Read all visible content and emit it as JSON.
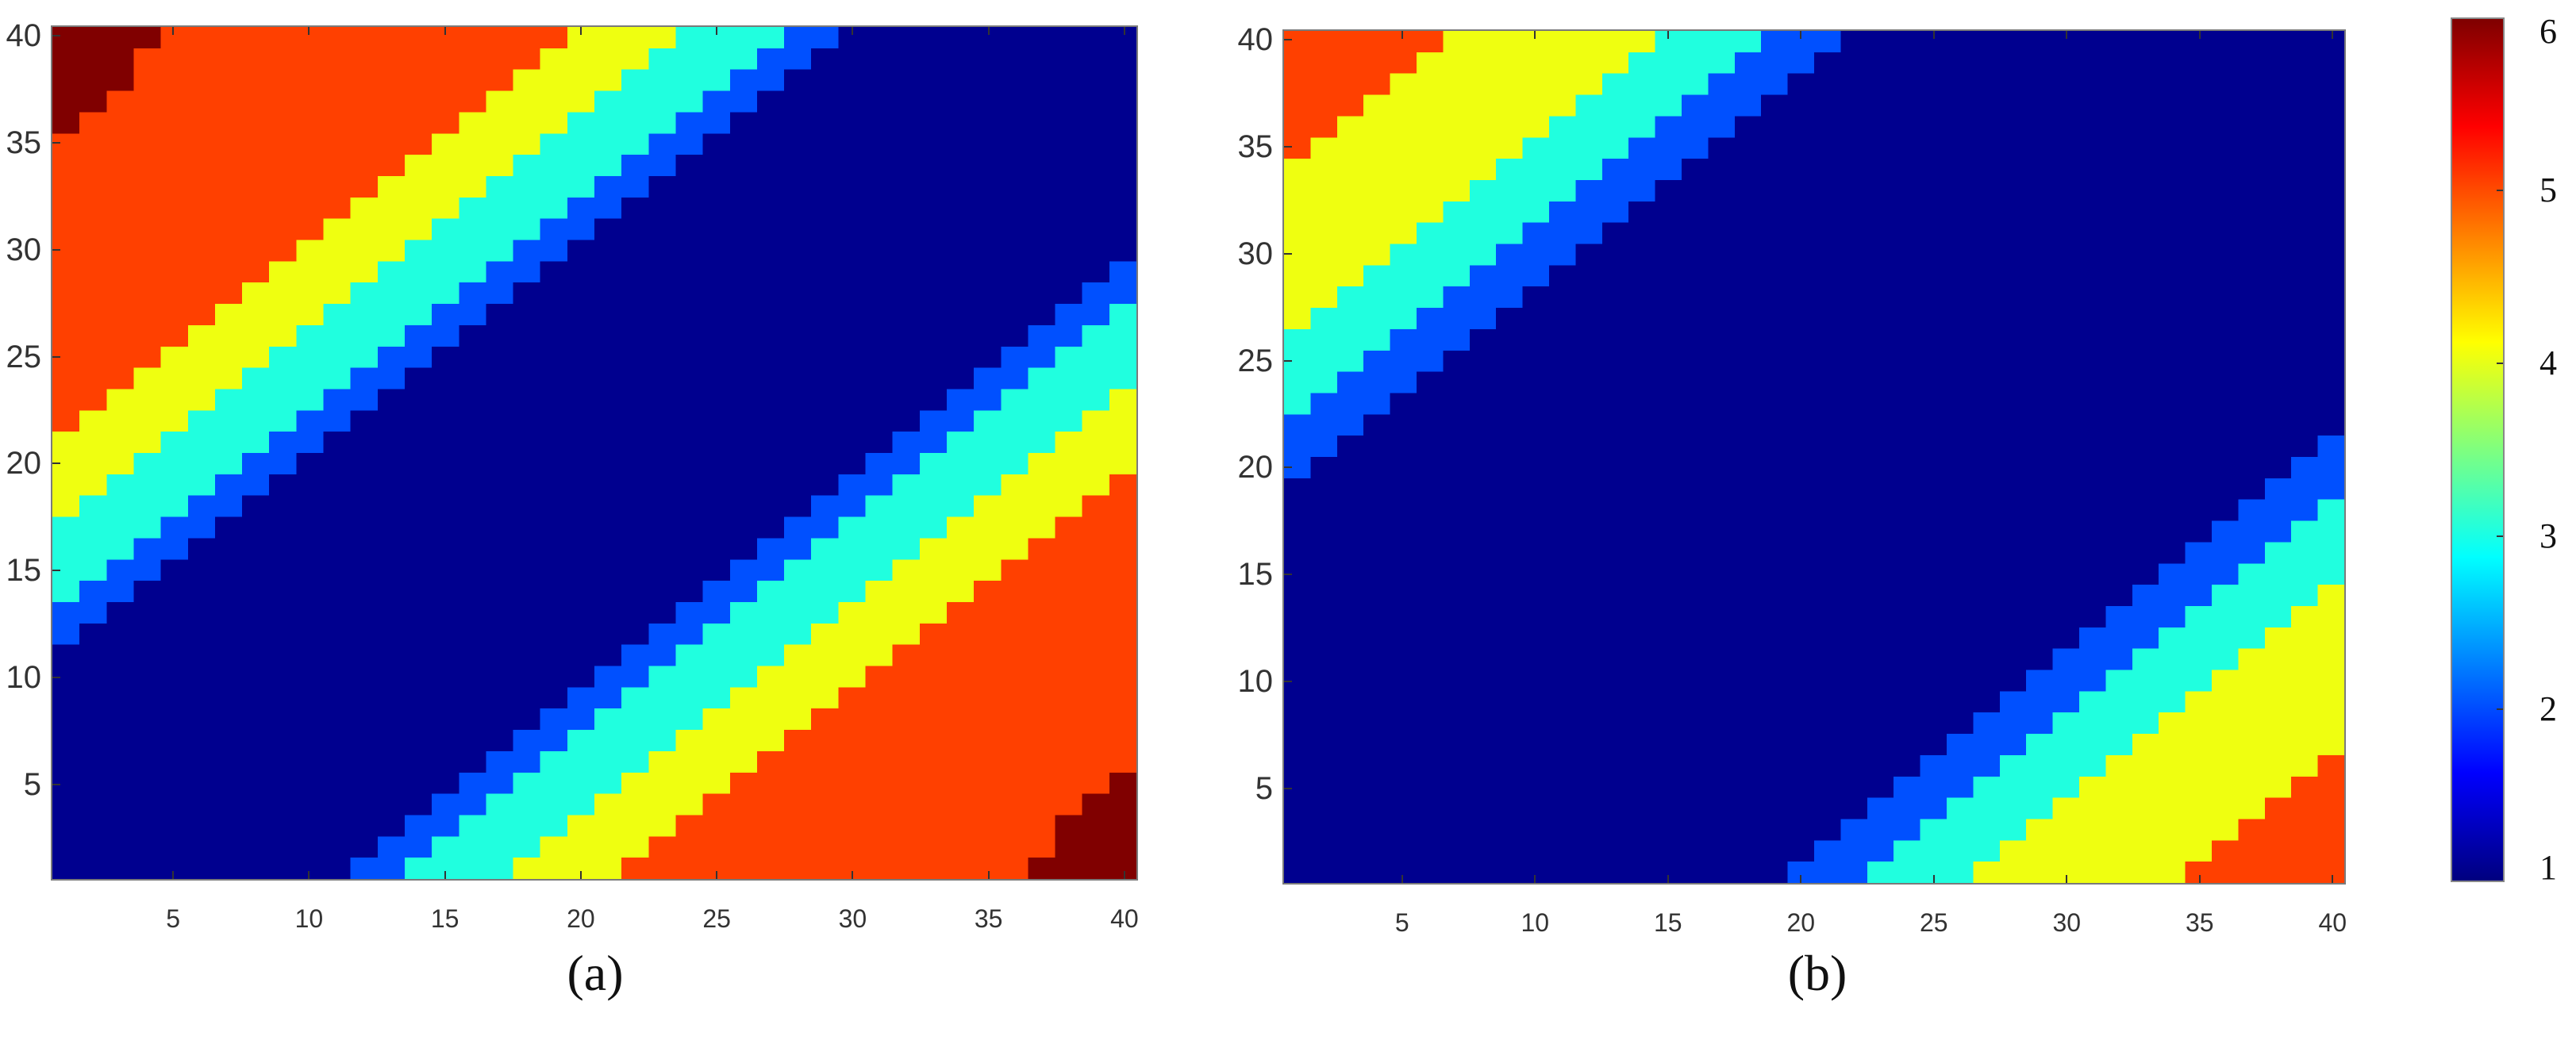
{
  "chart_data": [
    {
      "type": "heatmap",
      "panel": "a",
      "caption": "(a)",
      "grid_size": [
        40,
        40
      ],
      "xlim": [
        0.5,
        40.5
      ],
      "ylim": [
        0.5,
        40.5
      ],
      "xticks": [
        5,
        10,
        15,
        20,
        25,
        30,
        35,
        40
      ],
      "yticks": [
        5,
        10,
        15,
        20,
        25,
        30,
        35,
        40
      ],
      "description": "Diagonal banded field: value 1 along the main diagonal, increasing to 6 in the top-left and bottom-right corners (centrally symmetric).",
      "upper_boundaries": [
        {
          "value_above": 2,
          "from": [
            0.5,
            10.5
          ],
          "to": [
            29.5,
            40.5
          ]
        },
        {
          "value_above": 3,
          "from": [
            0.5,
            13.5
          ],
          "to": [
            28.0,
            40.5
          ]
        },
        {
          "value_above": 4,
          "from": [
            0.5,
            16.5
          ],
          "to": [
            24.5,
            40.5
          ]
        },
        {
          "value_above": 5,
          "from": [
            0.5,
            21.5
          ],
          "to": [
            20.0,
            40.5
          ]
        },
        {
          "value_above": 6,
          "from": [
            0.5,
            34.5
          ],
          "to": [
            5.0,
            40.5
          ]
        }
      ],
      "symmetry": "180-degree rotation about grid center",
      "value_range": [
        1,
        6
      ]
    },
    {
      "type": "heatmap",
      "panel": "b",
      "caption": "(b)",
      "grid_size": [
        40,
        40
      ],
      "xlim": [
        0.5,
        40.5
      ],
      "ylim": [
        0.5,
        40.5
      ],
      "xticks": [
        5,
        10,
        15,
        20,
        25,
        30,
        35,
        40
      ],
      "yticks": [
        5,
        10,
        15,
        20,
        25,
        30,
        35,
        40
      ],
      "description": "Wider diagonal band of value 1; values rise to 5 toward top-left and bottom-right corners (centrally symmetric).",
      "upper_boundaries": [
        {
          "value_above": 2,
          "from": [
            0.5,
            18.5
          ],
          "to": [
            22.5,
            40.5
          ]
        },
        {
          "value_above": 3,
          "from": [
            0.5,
            21.5
          ],
          "to": [
            19.0,
            40.5
          ]
        },
        {
          "value_above": 4,
          "from": [
            0.5,
            25.5
          ],
          "to": [
            15.5,
            40.5
          ]
        },
        {
          "value_above": 5,
          "from": [
            0.5,
            33.5
          ],
          "to": [
            6.5,
            40.5
          ]
        }
      ],
      "symmetry": "180-degree rotation about grid center",
      "value_range": [
        1,
        6
      ]
    }
  ],
  "colorbar": {
    "colormap": "jet",
    "ticks": [
      1,
      2,
      3,
      4,
      5,
      6
    ],
    "range": [
      1,
      6
    ]
  },
  "level_colors": {
    "1": "#00008f",
    "2": "#0050ff",
    "3": "#20ffdf",
    "4": "#efff10",
    "5": "#ff4000",
    "6": "#800000"
  },
  "jet_stops": [
    "#00007f",
    "#0000ff",
    "#007fff",
    "#00ffff",
    "#7fff7f",
    "#ffff00",
    "#ff7f00",
    "#ff0000",
    "#7f0000"
  ]
}
